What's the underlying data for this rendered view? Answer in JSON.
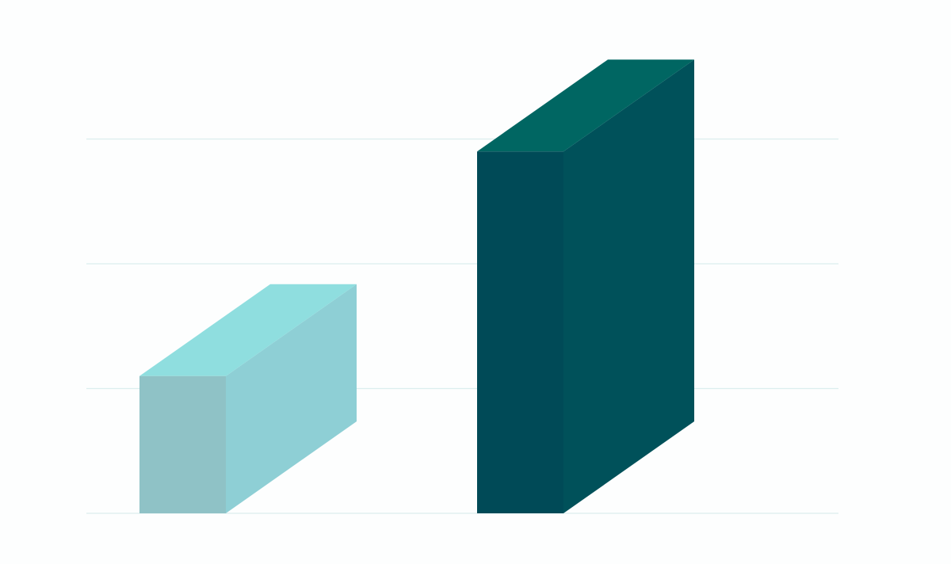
{
  "chart_data": {
    "type": "bar",
    "style": "3d-box",
    "categories": [
      "",
      ""
    ],
    "series": [
      {
        "values": [
          1.1,
          2.9
        ]
      }
    ],
    "ylim": [
      0,
      3
    ],
    "grid": true,
    "colors": {
      "background": "#fdfefe",
      "gridline": "#dceeee",
      "bars": [
        {
          "front": "#8fc2c6",
          "side": "#8ecfd5",
          "top": "#8fdedf"
        },
        {
          "front": "#004a57",
          "side": "#00515a",
          "top": "#006662"
        }
      ]
    }
  }
}
